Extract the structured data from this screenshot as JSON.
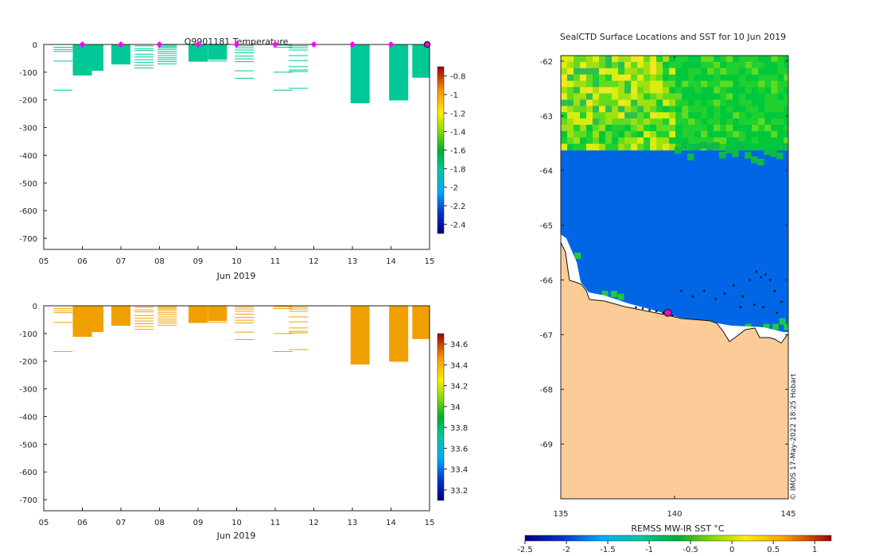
{
  "chart_data": [
    {
      "type": "section-profile",
      "title": "Q9901181  Temperature",
      "xlabel": "Jun 2019",
      "x_ticks": [
        "05",
        "06",
        "07",
        "08",
        "09",
        "10",
        "11",
        "12",
        "13",
        "14",
        "15"
      ],
      "x_range": [
        5,
        15
      ],
      "y_ticks": [
        "0",
        "-100",
        "-200",
        "-300",
        "-400",
        "-500",
        "-600",
        "-700"
      ],
      "y_range": [
        -740,
        0
      ],
      "surface_markers_day": [
        6,
        7,
        8,
        9,
        10,
        11,
        12,
        13,
        14
      ],
      "current_marker_day": 15,
      "fill_color": "#00c896",
      "columns": [
        {
          "day": 5.5,
          "depth": 0,
          "lines": [
            -10,
            -18,
            -25,
            -60,
            -165
          ]
        },
        {
          "day": 6.0,
          "depth": -112,
          "lines": []
        },
        {
          "day": 6.3,
          "depth": -95,
          "lines": []
        },
        {
          "day": 7.0,
          "depth": -72,
          "lines": []
        },
        {
          "day": 7.6,
          "depth": 0,
          "lines": [
            -5,
            -15,
            -22,
            -35,
            -45,
            -55,
            -65,
            -75,
            -85
          ]
        },
        {
          "day": 8.2,
          "depth": 0,
          "lines": [
            -3,
            -8,
            -12,
            -18,
            -25,
            -32,
            -40,
            -48,
            -55,
            -62,
            -70
          ]
        },
        {
          "day": 9.0,
          "depth": -62,
          "lines": []
        },
        {
          "day": 9.5,
          "depth": -55,
          "lines": [
            -10,
            -20,
            -30,
            -40,
            -50,
            -60
          ]
        },
        {
          "day": 10.2,
          "depth": 0,
          "lines": [
            -5,
            -12,
            -20,
            -30,
            -42,
            -52,
            -62,
            -95,
            -122
          ]
        },
        {
          "day": 11.2,
          "depth": 0,
          "lines": [
            -3,
            -10,
            -100,
            -165
          ]
        },
        {
          "day": 11.6,
          "depth": 0,
          "lines": [
            -5,
            -12,
            -20,
            -40,
            -58,
            -80,
            -92,
            -98,
            -158
          ]
        },
        {
          "day": 13.2,
          "depth": -212,
          "lines": []
        },
        {
          "day": 14.2,
          "depth": -202,
          "lines": []
        },
        {
          "day": 14.8,
          "depth": -120,
          "lines": []
        }
      ],
      "colorbar": {
        "ticks": [
          "-0.8",
          "-1",
          "-1.2",
          "-1.4",
          "-1.6",
          "-1.8",
          "-2",
          "-2.2",
          "-2.4"
        ],
        "range": [
          -2.5,
          -0.7
        ]
      }
    },
    {
      "type": "section-profile",
      "title": "",
      "xlabel": "Jun 2019",
      "x_ticks": [
        "05",
        "06",
        "07",
        "08",
        "09",
        "10",
        "11",
        "12",
        "13",
        "14",
        "15"
      ],
      "x_range": [
        5,
        15
      ],
      "y_ticks": [
        "0",
        "-100",
        "-200",
        "-300",
        "-400",
        "-500",
        "-600",
        "-700"
      ],
      "y_range": [
        -740,
        0
      ],
      "fill_color": "#f0a000",
      "columns": [
        {
          "day": 5.5,
          "depth": 0,
          "lines": [
            -10,
            -18,
            -25,
            -60,
            -165
          ]
        },
        {
          "day": 6.0,
          "depth": -112,
          "lines": []
        },
        {
          "day": 6.3,
          "depth": -95,
          "lines": []
        },
        {
          "day": 7.0,
          "depth": -72,
          "lines": []
        },
        {
          "day": 7.6,
          "depth": 0,
          "lines": [
            -5,
            -15,
            -22,
            -35,
            -45,
            -55,
            -65,
            -75,
            -85
          ]
        },
        {
          "day": 8.2,
          "depth": 0,
          "lines": [
            -3,
            -8,
            -12,
            -18,
            -25,
            -32,
            -40,
            -48,
            -55,
            -62,
            -70
          ]
        },
        {
          "day": 9.0,
          "depth": -62,
          "lines": []
        },
        {
          "day": 9.5,
          "depth": -55,
          "lines": [
            -10,
            -20,
            -30,
            -40,
            -50,
            -60
          ]
        },
        {
          "day": 10.2,
          "depth": 0,
          "lines": [
            -5,
            -12,
            -20,
            -30,
            -42,
            -52,
            -62,
            -95,
            -122
          ]
        },
        {
          "day": 11.2,
          "depth": 0,
          "lines": [
            -3,
            -10,
            -100,
            -165
          ]
        },
        {
          "day": 11.6,
          "depth": 0,
          "lines": [
            -5,
            -12,
            -20,
            -40,
            -58,
            -80,
            -92,
            -98,
            -158
          ]
        },
        {
          "day": 13.2,
          "depth": -212,
          "lines": []
        },
        {
          "day": 14.2,
          "depth": -202,
          "lines": []
        },
        {
          "day": 14.8,
          "depth": -120,
          "lines": []
        }
      ],
      "colorbar": {
        "ticks": [
          "34.6",
          "34.4",
          "34.2",
          "34",
          "33.8",
          "33.6",
          "33.4",
          "33.2"
        ],
        "range": [
          33.1,
          34.7
        ]
      }
    },
    {
      "type": "map",
      "title": "SealCTD Surface Locations and SST for 10 Jun 2019",
      "x_ticks": [
        "135",
        "140",
        "145"
      ],
      "x_range": [
        135,
        145
      ],
      "y_ticks": [
        "-62",
        "-63",
        "-64",
        "-65",
        "-66",
        "-67",
        "-68",
        "-69"
      ],
      "y_range": [
        -70,
        -61.9
      ],
      "colorbar_label": "REMSS MW-IR SST °C",
      "colorbar_ticks": [
        "-2.5",
        "-2",
        "-1.5",
        "-1",
        "-0.5",
        "0",
        "0.5",
        "1"
      ],
      "colorbar_range": [
        -2.5,
        1.2
      ],
      "credit": "© IMOS 17-May-2022 18:25 Hobart",
      "current_location": {
        "lon": 139.7,
        "lat": -66.6
      },
      "track_points": [
        {
          "lon": 138.3,
          "lat": -66.5
        },
        {
          "lon": 138.6,
          "lat": -66.52
        },
        {
          "lon": 138.9,
          "lat": -66.55
        },
        {
          "lon": 139.2,
          "lat": -66.57
        },
        {
          "lon": 139.5,
          "lat": -66.6
        },
        {
          "lon": 139.9,
          "lat": -66.65
        },
        {
          "lon": 140.3,
          "lat": -66.2
        },
        {
          "lon": 140.8,
          "lat": -66.3
        },
        {
          "lon": 141.3,
          "lat": -66.2
        },
        {
          "lon": 141.8,
          "lat": -66.35
        },
        {
          "lon": 142.2,
          "lat": -66.25
        },
        {
          "lon": 142.6,
          "lat": -66.1
        },
        {
          "lon": 143.0,
          "lat": -66.3
        },
        {
          "lon": 143.3,
          "lat": -66.0
        },
        {
          "lon": 143.6,
          "lat": -65.85
        },
        {
          "lon": 143.8,
          "lat": -65.95
        },
        {
          "lon": 144.0,
          "lat": -65.9
        },
        {
          "lon": 144.2,
          "lat": -66.0
        },
        {
          "lon": 144.4,
          "lat": -66.2
        },
        {
          "lon": 144.7,
          "lat": -66.4
        },
        {
          "lon": 143.9,
          "lat": -66.5
        },
        {
          "lon": 143.5,
          "lat": -66.45
        },
        {
          "lon": 144.5,
          "lat": -66.6
        },
        {
          "lon": 142.9,
          "lat": -66.5
        }
      ]
    }
  ]
}
